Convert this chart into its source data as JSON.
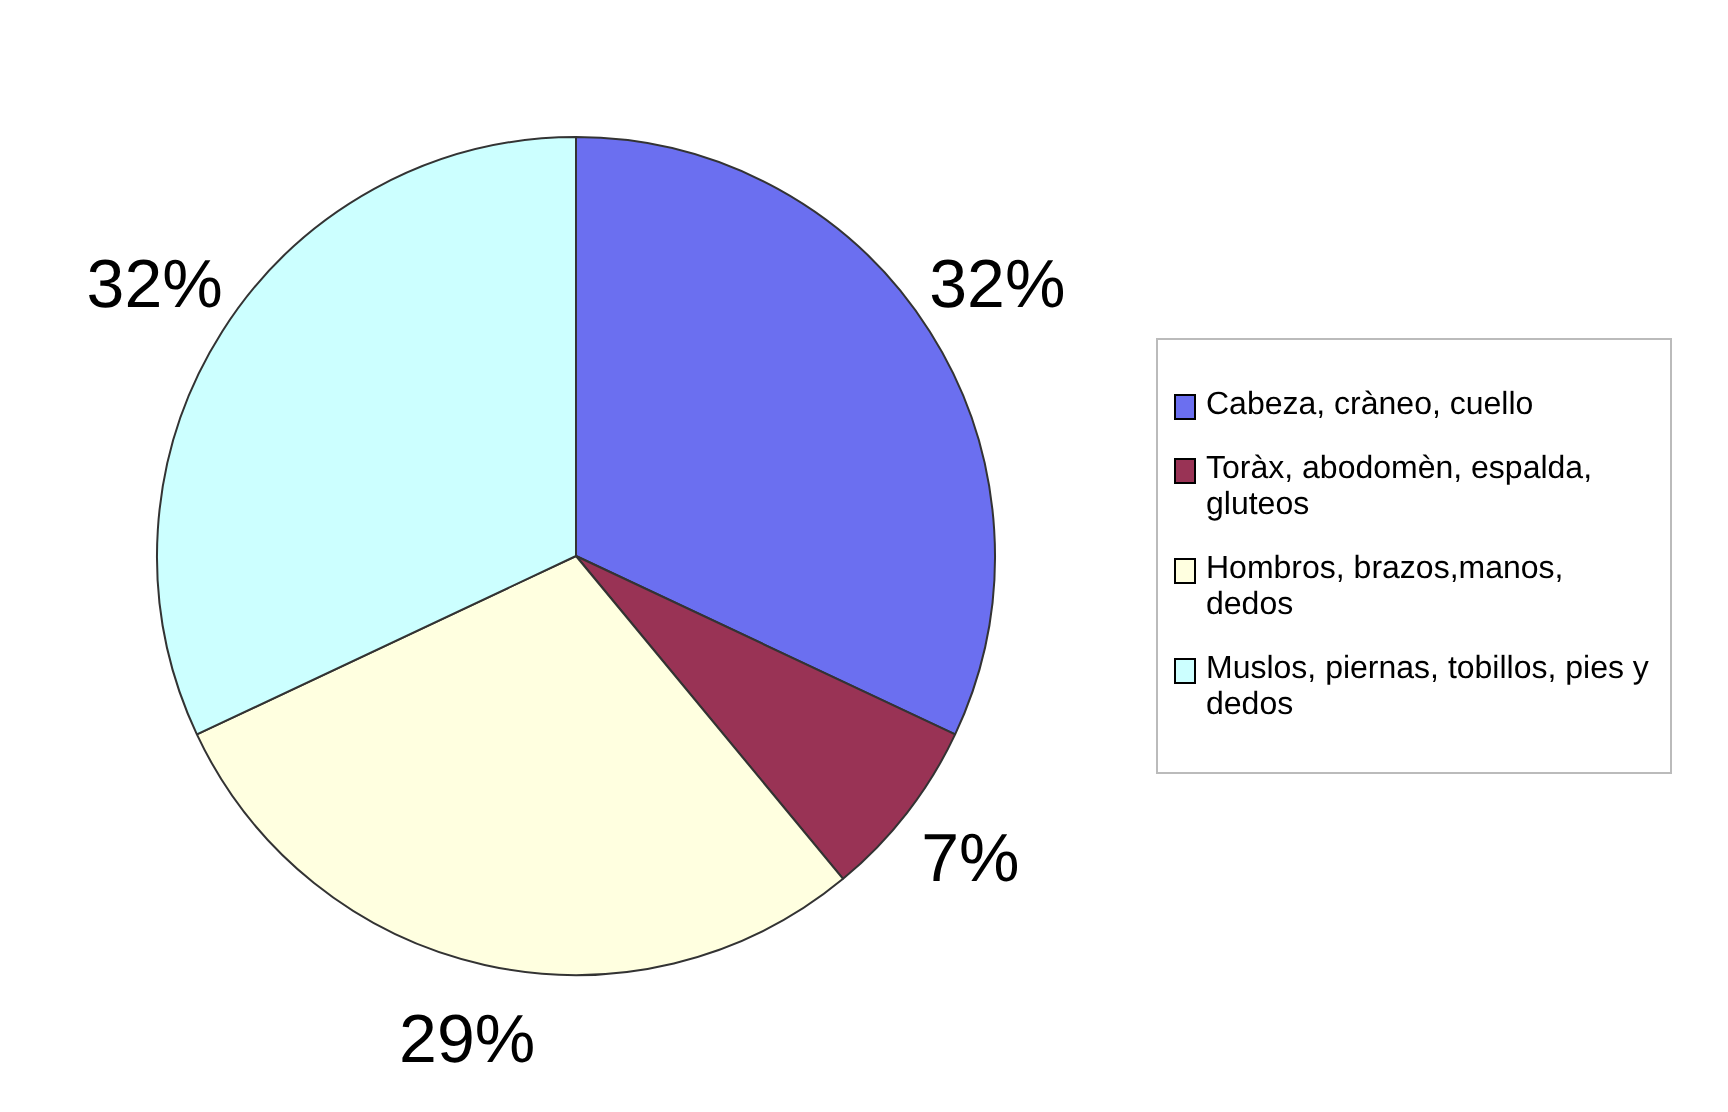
{
  "chart_data": {
    "type": "pie",
    "categories": [
      "Cabeza, cràneo, cuello",
      "Toràx, abodomèn, espalda, gluteos",
      "Hombros, brazos,manos, dedos",
      "Muslos, piernas, tobillos, pies y dedos"
    ],
    "values": [
      32,
      7,
      29,
      32
    ],
    "colors": [
      "#6b6ff0",
      "#993355",
      "#ffffe0",
      "#ccffff"
    ],
    "value_labels": [
      "32%",
      "7%",
      "29%",
      "32%"
    ],
    "legend": "right"
  }
}
